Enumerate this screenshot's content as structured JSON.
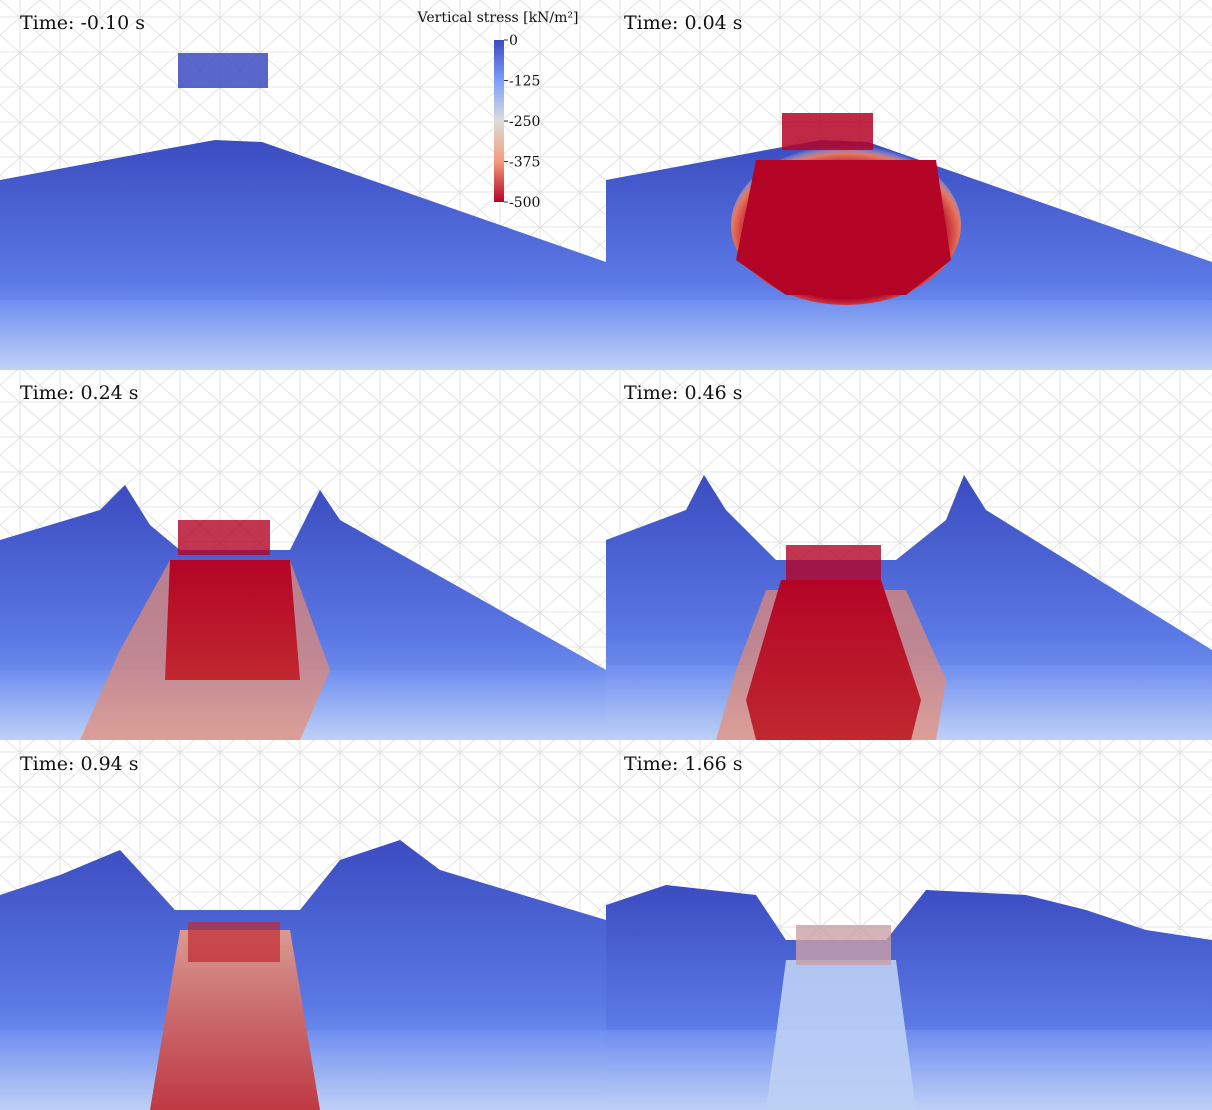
{
  "colorbar": {
    "title": "Vertical stress [kN/m²]",
    "ticks": [
      0,
      -125,
      -250,
      -375,
      -500
    ]
  },
  "panels": [
    {
      "time": "Time: -0.10 s"
    },
    {
      "time": "Time:  0.04 s"
    },
    {
      "time": "Time:  0.24 s"
    },
    {
      "time": "Time:  0.46 s"
    },
    {
      "time": "Time:  0.94 s"
    },
    {
      "time": "Time:  1.66 s"
    }
  ]
}
